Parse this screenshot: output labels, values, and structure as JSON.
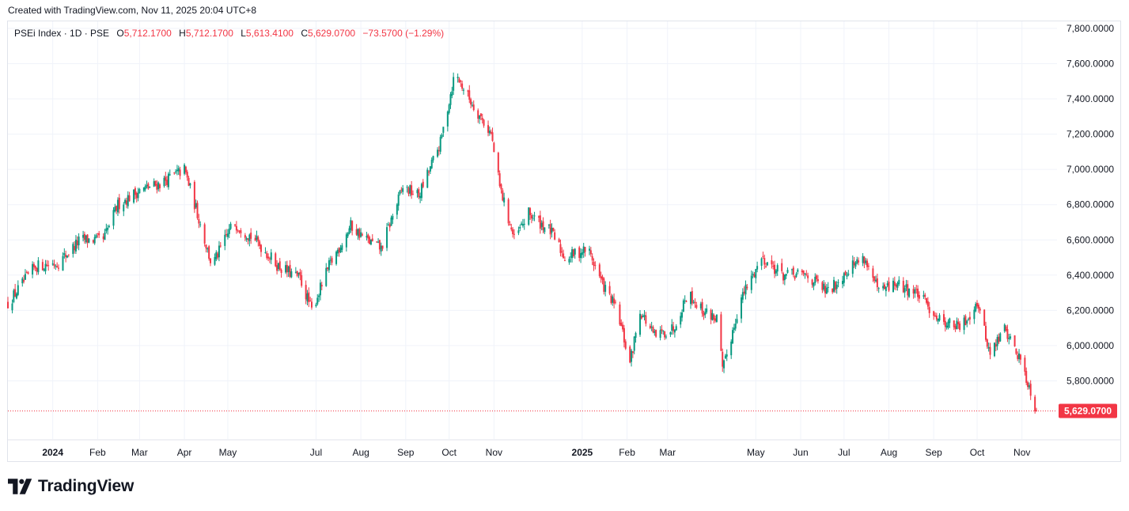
{
  "header": {
    "created_text": "Created with TradingView.com, Nov 11, 2025 20:04 UTC+8"
  },
  "legend": {
    "symbol": "PSEi Index · 1D · PSE",
    "open_label": "O",
    "open": "5,712.1700",
    "high_label": "H",
    "high": "5,712.1700",
    "low_label": "L",
    "low": "5,613.4100",
    "close_label": "C",
    "close": "5,629.0700",
    "change": "−73.5700 (−1.29%)"
  },
  "brand": {
    "name": "TradingView",
    "icon": "tradingview-logo-icon"
  },
  "colors": {
    "up": "#089981",
    "down": "#f23645",
    "grid": "#f0f3fa",
    "text": "#131722",
    "price_tag": "#f23645"
  },
  "chart_data": {
    "type": "candlestick",
    "title": "PSEi Index · 1D · PSE",
    "ylim": [
      5470,
      7840
    ],
    "x_ticks": [
      "2024",
      "Feb",
      "Mar",
      "Apr",
      "May",
      "Jul",
      "Aug",
      "Sep",
      "Oct",
      "Nov",
      "2025",
      "Feb",
      "Mar",
      "May",
      "Jun",
      "Jul",
      "Aug",
      "Sep",
      "Oct",
      "Nov"
    ],
    "y_ticks": [
      "5,800.0000",
      "6,000.0000",
      "6,200.0000",
      "6,400.0000",
      "6,600.0000",
      "6,800.0000",
      "7,000.0000",
      "7,200.0000",
      "7,400.0000",
      "7,600.0000",
      "7,800.0000"
    ],
    "last_price": 5629.07,
    "last_price_label": "5,629.0700",
    "grid": true,
    "approx_close_path": [
      [
        "2023-12-01",
        6240
      ],
      [
        "2023-12-20",
        6450
      ],
      [
        "2024-01-05",
        6470
      ],
      [
        "2024-01-20",
        6600
      ],
      [
        "2024-02-05",
        6600
      ],
      [
        "2024-02-15",
        6800
      ],
      [
        "2024-03-01",
        6880
      ],
      [
        "2024-03-15",
        6920
      ],
      [
        "2024-04-01",
        7000
      ],
      [
        "2024-04-10",
        6750
      ],
      [
        "2024-04-20",
        6450
      ],
      [
        "2024-05-05",
        6700
      ],
      [
        "2024-05-20",
        6600
      ],
      [
        "2024-06-05",
        6450
      ],
      [
        "2024-06-20",
        6380
      ],
      [
        "2024-06-28",
        6200
      ],
      [
        "2024-07-10",
        6450
      ],
      [
        "2024-07-25",
        6680
      ],
      [
        "2024-08-05",
        6600
      ],
      [
        "2024-08-15",
        6550
      ],
      [
        "2024-08-30",
        6900
      ],
      [
        "2024-09-10",
        6850
      ],
      [
        "2024-09-25",
        7150
      ],
      [
        "2024-10-05",
        7550
      ],
      [
        "2024-10-15",
        7400
      ],
      [
        "2024-10-30",
        7200
      ],
      [
        "2024-11-05",
        6900
      ],
      [
        "2024-11-15",
        6600
      ],
      [
        "2024-11-25",
        6750
      ],
      [
        "2024-12-10",
        6650
      ],
      [
        "2024-12-20",
        6500
      ],
      [
        "2025-01-05",
        6550
      ],
      [
        "2025-01-15",
        6350
      ],
      [
        "2025-01-25",
        6200
      ],
      [
        "2025-02-03",
        5900
      ],
      [
        "2025-02-10",
        6200
      ],
      [
        "2025-02-20",
        6050
      ],
      [
        "2025-03-05",
        6100
      ],
      [
        "2025-03-15",
        6300
      ],
      [
        "2025-03-25",
        6200
      ],
      [
        "2025-04-05",
        6150
      ],
      [
        "2025-04-08",
        5850
      ],
      [
        "2025-04-20",
        6250
      ],
      [
        "2025-05-05",
        6500
      ],
      [
        "2025-05-20",
        6400
      ],
      [
        "2025-06-05",
        6400
      ],
      [
        "2025-06-20",
        6300
      ],
      [
        "2025-07-05",
        6450
      ],
      [
        "2025-07-15",
        6500
      ],
      [
        "2025-07-25",
        6300
      ],
      [
        "2025-08-05",
        6350
      ],
      [
        "2025-08-20",
        6300
      ],
      [
        "2025-09-05",
        6150
      ],
      [
        "2025-09-20",
        6100
      ],
      [
        "2025-10-01",
        6250
      ],
      [
        "2025-10-10",
        5950
      ],
      [
        "2025-10-20",
        6100
      ],
      [
        "2025-11-01",
        5900
      ],
      [
        "2025-11-11",
        5629
      ]
    ]
  }
}
